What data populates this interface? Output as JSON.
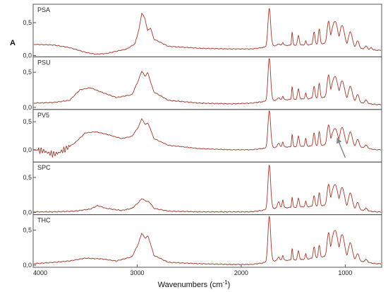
{
  "chart_data": {
    "type": "line",
    "xlabel": "Wavenumbers (cm",
    "xlabel_sup": "-1",
    "xlabel_close": ")",
    "ylabel": "A",
    "xlim": [
      4000,
      650
    ],
    "x_ticks": [
      {
        "value": 4000,
        "label": "4000"
      },
      {
        "value": 3000,
        "label": "3000"
      },
      {
        "value": 2000,
        "label": "2000"
      },
      {
        "value": 1000,
        "label": "1000"
      }
    ],
    "line_color": "#9e3a2a",
    "panels": [
      {
        "label": "PSA",
        "ylim": [
          -0.02,
          0.78
        ],
        "y_ticks": [
          {
            "value": 0.0,
            "label": "0,0"
          },
          {
            "value": 0.5,
            "label": "0,5"
          }
        ],
        "ylabel_shown": true,
        "baseline": [
          [
            4000,
            0.17
          ],
          [
            3800,
            0.16
          ],
          [
            3650,
            0.12
          ],
          [
            3500,
            0.05
          ],
          [
            3400,
            0.02
          ],
          [
            3300,
            0.03
          ],
          [
            3100,
            0.1
          ],
          [
            3020,
            0.18
          ],
          [
            2980,
            0.42
          ],
          [
            2955,
            0.65
          ],
          [
            2925,
            0.56
          ],
          [
            2900,
            0.38
          ],
          [
            2870,
            0.42
          ],
          [
            2840,
            0.25
          ],
          [
            2700,
            0.14
          ],
          [
            2400,
            0.11
          ],
          [
            2100,
            0.1
          ],
          [
            1900,
            0.1
          ],
          [
            1800,
            0.12
          ]
        ],
        "peaks": [
          [
            1730,
            0.72,
            18
          ],
          [
            1640,
            0.18,
            14
          ],
          [
            1600,
            0.2,
            10
          ],
          [
            1510,
            0.36,
            8
          ],
          [
            1450,
            0.3,
            12
          ],
          [
            1380,
            0.22,
            10
          ],
          [
            1300,
            0.36,
            12
          ],
          [
            1250,
            0.4,
            12
          ],
          [
            1160,
            0.52,
            20
          ],
          [
            1100,
            0.52,
            40
          ],
          [
            1030,
            0.46,
            30
          ],
          [
            950,
            0.36,
            25
          ],
          [
            880,
            0.22,
            20
          ],
          [
            800,
            0.14,
            20
          ],
          [
            750,
            0.12,
            15
          ]
        ],
        "tail": [
          [
            1800,
            0.12
          ],
          [
            1700,
            0.15
          ],
          [
            1400,
            0.16
          ],
          [
            1200,
            0.18
          ],
          [
            1000,
            0.16
          ],
          [
            850,
            0.1
          ],
          [
            700,
            0.08
          ],
          [
            650,
            0.08
          ]
        ],
        "arrow": null
      },
      {
        "label": "PSU",
        "ylim": [
          -0.03,
          0.72
        ],
        "y_ticks": [
          {
            "value": 0.0,
            "label": "0,0"
          },
          {
            "value": 0.5,
            "label": "0,5"
          }
        ],
        "ylabel_shown": false,
        "baseline": [
          [
            4000,
            0.06
          ],
          [
            3800,
            0.07
          ],
          [
            3650,
            0.1
          ],
          [
            3550,
            0.25
          ],
          [
            3450,
            0.28
          ],
          [
            3350,
            0.22
          ],
          [
            3200,
            0.14
          ],
          [
            3050,
            0.18
          ],
          [
            2990,
            0.38
          ],
          [
            2955,
            0.52
          ],
          [
            2925,
            0.44
          ],
          [
            2900,
            0.5
          ],
          [
            2870,
            0.36
          ],
          [
            2840,
            0.22
          ],
          [
            2700,
            0.1
          ],
          [
            2400,
            0.06
          ],
          [
            2100,
            0.05
          ],
          [
            1900,
            0.06
          ],
          [
            1800,
            0.08
          ]
        ],
        "peaks": [
          [
            1730,
            0.7,
            18
          ],
          [
            1640,
            0.14,
            14
          ],
          [
            1600,
            0.16,
            10
          ],
          [
            1510,
            0.3,
            8
          ],
          [
            1450,
            0.26,
            12
          ],
          [
            1380,
            0.2,
            10
          ],
          [
            1300,
            0.3,
            12
          ],
          [
            1250,
            0.34,
            12
          ],
          [
            1160,
            0.46,
            20
          ],
          [
            1100,
            0.44,
            40
          ],
          [
            1030,
            0.38,
            30
          ],
          [
            950,
            0.3,
            25
          ],
          [
            880,
            0.18,
            20
          ],
          [
            800,
            0.1,
            20
          ]
        ],
        "tail": [
          [
            1800,
            0.08
          ],
          [
            1700,
            0.1
          ],
          [
            1400,
            0.12
          ],
          [
            1200,
            0.14
          ],
          [
            1000,
            0.12
          ],
          [
            850,
            0.06
          ],
          [
            700,
            0.04
          ],
          [
            650,
            0.04
          ]
        ],
        "arrow": null
      },
      {
        "label": "PV5",
        "ylim": [
          -0.22,
          0.72
        ],
        "y_ticks": [
          {
            "value": 0.0,
            "label": "0,0"
          },
          {
            "value": 0.5,
            "label": "0,5"
          }
        ],
        "ylabel_shown": false,
        "baseline": [
          [
            4000,
            0.0
          ],
          [
            3900,
            -0.02
          ],
          [
            3850,
            -0.06
          ],
          [
            3800,
            -0.08
          ],
          [
            3750,
            -0.05
          ],
          [
            3700,
            0.0
          ],
          [
            3600,
            0.12
          ],
          [
            3500,
            0.3
          ],
          [
            3400,
            0.32
          ],
          [
            3300,
            0.28
          ],
          [
            3150,
            0.2
          ],
          [
            3050,
            0.24
          ],
          [
            2990,
            0.4
          ],
          [
            2955,
            0.56
          ],
          [
            2925,
            0.45
          ],
          [
            2900,
            0.48
          ],
          [
            2870,
            0.36
          ],
          [
            2840,
            0.2
          ],
          [
            2700,
            0.08
          ],
          [
            2400,
            0.02
          ],
          [
            2100,
            0.0
          ],
          [
            1900,
            0.0
          ],
          [
            1800,
            0.02
          ]
        ],
        "peaks": [
          [
            1730,
            0.7,
            18
          ],
          [
            1640,
            0.12,
            14
          ],
          [
            1600,
            0.14,
            10
          ],
          [
            1510,
            0.28,
            8
          ],
          [
            1450,
            0.24,
            12
          ],
          [
            1380,
            0.2,
            10
          ],
          [
            1300,
            0.3,
            12
          ],
          [
            1250,
            0.32,
            12
          ],
          [
            1160,
            0.44,
            20
          ],
          [
            1100,
            0.38,
            40
          ],
          [
            1030,
            0.4,
            30
          ],
          [
            950,
            0.32,
            25
          ],
          [
            880,
            0.18,
            20
          ],
          [
            800,
            0.08,
            20
          ]
        ],
        "tail": [
          [
            1800,
            0.02
          ],
          [
            1700,
            0.04
          ],
          [
            1400,
            0.06
          ],
          [
            1200,
            0.08
          ],
          [
            1000,
            0.08
          ],
          [
            850,
            0.04
          ],
          [
            700,
            0.0
          ],
          [
            650,
            0.0
          ]
        ],
        "arrow": {
          "x_from": 1000,
          "y_from": -0.14,
          "x_to": 1080,
          "y_to": 0.22
        }
      },
      {
        "label": "SPC",
        "ylim": [
          -0.03,
          0.72
        ],
        "y_ticks": [
          {
            "value": 0.0,
            "label": "0,0"
          },
          {
            "value": 0.5,
            "label": "0,5"
          }
        ],
        "ylabel_shown": false,
        "baseline": [
          [
            4000,
            0.01
          ],
          [
            3800,
            0.01
          ],
          [
            3600,
            0.02
          ],
          [
            3450,
            0.05
          ],
          [
            3380,
            0.1
          ],
          [
            3300,
            0.06
          ],
          [
            3150,
            0.03
          ],
          [
            3050,
            0.06
          ],
          [
            2990,
            0.14
          ],
          [
            2955,
            0.2
          ],
          [
            2925,
            0.17
          ],
          [
            2900,
            0.16
          ],
          [
            2870,
            0.13
          ],
          [
            2840,
            0.06
          ],
          [
            2700,
            0.02
          ],
          [
            2400,
            0.01
          ],
          [
            2100,
            0.01
          ],
          [
            1900,
            0.01
          ],
          [
            1800,
            0.03
          ]
        ],
        "peaks": [
          [
            1730,
            0.68,
            18
          ],
          [
            1640,
            0.16,
            14
          ],
          [
            1600,
            0.18,
            10
          ],
          [
            1510,
            0.22,
            8
          ],
          [
            1450,
            0.2,
            12
          ],
          [
            1380,
            0.16,
            10
          ],
          [
            1300,
            0.24,
            12
          ],
          [
            1250,
            0.28,
            12
          ],
          [
            1160,
            0.4,
            20
          ],
          [
            1100,
            0.4,
            40
          ],
          [
            1030,
            0.36,
            30
          ],
          [
            950,
            0.28,
            25
          ],
          [
            880,
            0.14,
            20
          ],
          [
            800,
            0.06,
            20
          ]
        ],
        "tail": [
          [
            1800,
            0.03
          ],
          [
            1700,
            0.06
          ],
          [
            1400,
            0.08
          ],
          [
            1200,
            0.1
          ],
          [
            1000,
            0.08
          ],
          [
            850,
            0.03
          ],
          [
            700,
            0.01
          ],
          [
            650,
            0.01
          ]
        ],
        "arrow": null
      },
      {
        "label": "THC",
        "ylim": [
          -0.03,
          0.72
        ],
        "y_ticks": [
          {
            "value": 0.0,
            "label": "0,0"
          },
          {
            "value": 0.5,
            "label": "0,5"
          }
        ],
        "ylabel_shown": false,
        "baseline": [
          [
            4000,
            0.02
          ],
          [
            3800,
            0.04
          ],
          [
            3650,
            0.06
          ],
          [
            3500,
            0.1
          ],
          [
            3350,
            0.09
          ],
          [
            3200,
            0.06
          ],
          [
            3050,
            0.12
          ],
          [
            2990,
            0.3
          ],
          [
            2955,
            0.46
          ],
          [
            2925,
            0.38
          ],
          [
            2900,
            0.42
          ],
          [
            2870,
            0.3
          ],
          [
            2840,
            0.14
          ],
          [
            2700,
            0.04
          ],
          [
            2400,
            0.02
          ],
          [
            2100,
            0.01
          ],
          [
            1900,
            0.01
          ],
          [
            1800,
            0.03
          ]
        ],
        "peaks": [
          [
            1730,
            0.7,
            18
          ],
          [
            1640,
            0.12,
            14
          ],
          [
            1600,
            0.14,
            10
          ],
          [
            1510,
            0.24,
            8
          ],
          [
            1450,
            0.2,
            12
          ],
          [
            1380,
            0.16,
            10
          ],
          [
            1300,
            0.26,
            12
          ],
          [
            1250,
            0.28,
            12
          ],
          [
            1160,
            0.46,
            20
          ],
          [
            1100,
            0.5,
            40
          ],
          [
            1030,
            0.44,
            30
          ],
          [
            950,
            0.32,
            25
          ],
          [
            880,
            0.16,
            20
          ],
          [
            800,
            0.08,
            20
          ]
        ],
        "tail": [
          [
            1800,
            0.03
          ],
          [
            1700,
            0.06
          ],
          [
            1400,
            0.08
          ],
          [
            1200,
            0.12
          ],
          [
            1000,
            0.12
          ],
          [
            850,
            0.05
          ],
          [
            700,
            0.02
          ],
          [
            650,
            0.02
          ]
        ],
        "arrow": null
      }
    ]
  }
}
